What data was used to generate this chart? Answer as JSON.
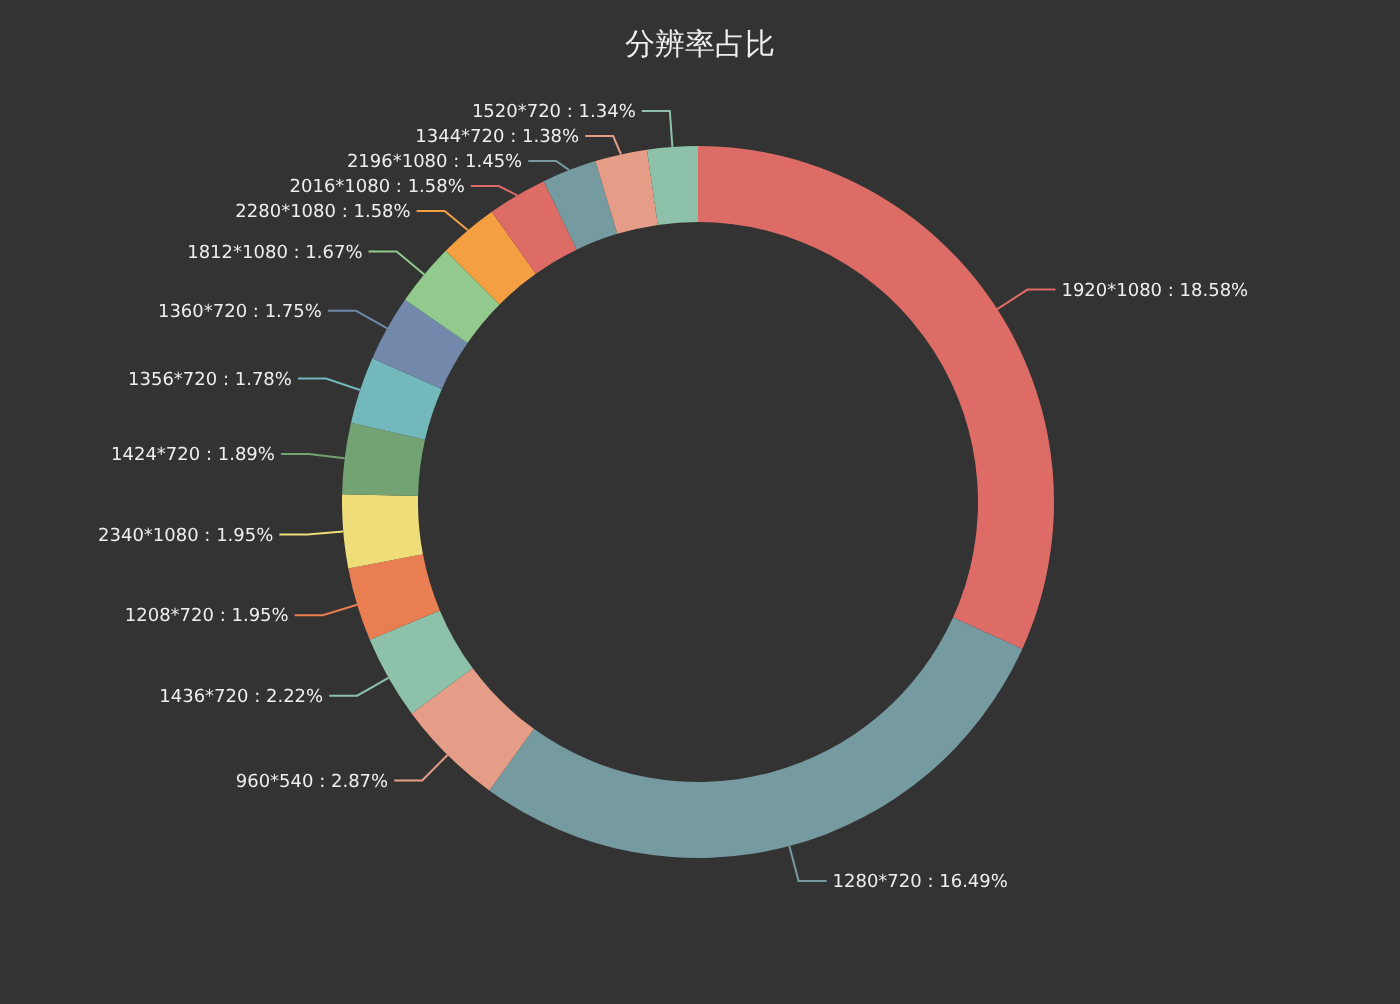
{
  "chart_data": {
    "type": "donut",
    "title": "分辨率占比",
    "categories": [
      "1920*1080",
      "1280*720",
      "960*540",
      "1436*720",
      "1208*720",
      "2340*1080",
      "1424*720",
      "1356*720",
      "1360*720",
      "1812*1080",
      "2280*1080",
      "2016*1080",
      "2196*1080",
      "1344*720",
      "1520*720"
    ],
    "values": [
      18.58,
      16.49,
      2.87,
      2.22,
      1.95,
      1.95,
      1.89,
      1.78,
      1.75,
      1.67,
      1.58,
      1.58,
      1.45,
      1.38,
      1.34
    ],
    "value_labels": [
      "18.58%",
      "16.49%",
      "2.87%",
      "2.22%",
      "1.95%",
      "1.95%",
      "1.89%",
      "1.78%",
      "1.75%",
      "1.67%",
      "1.58%",
      "1.58%",
      "1.45%",
      "1.38%",
      "1.34%"
    ],
    "colors": [
      "#dd6b66",
      "#759aa0",
      "#e69d87",
      "#8dc1a9",
      "#ea7e53",
      "#eedd78",
      "#73a373",
      "#73b9bc",
      "#7289ab",
      "#91ca8c",
      "#f49f42",
      "#dd6b66",
      "#759aa0",
      "#e69d87",
      "#8dc1a9"
    ]
  }
}
